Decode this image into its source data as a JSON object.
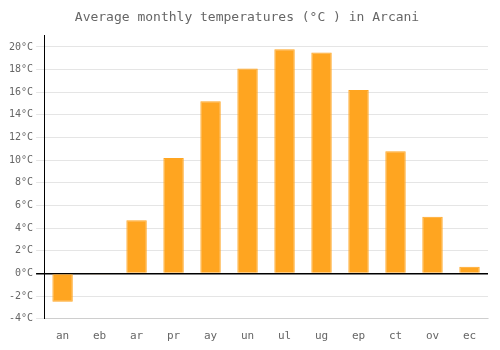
{
  "chart_data": {
    "type": "bar",
    "title": "Average monthly temperatures (°C ) in Arcani",
    "categories": [
      "an",
      "eb",
      "ar",
      "pr",
      "ay",
      "un",
      "ul",
      "ug",
      "ep",
      "ct",
      "ov",
      "ec"
    ],
    "values": [
      -2.5,
      -0.1,
      4.7,
      10.2,
      15.2,
      18.1,
      19.8,
      19.5,
      16.2,
      10.8,
      5.0,
      0.6
    ],
    "color": "#FFA520",
    "ylim": [
      -4,
      21
    ],
    "yticks": [
      {
        "value": -4,
        "label": "-4°C"
      },
      {
        "value": -2,
        "label": "-2°C"
      },
      {
        "value": 0,
        "label": "0°C"
      },
      {
        "value": 2,
        "label": "2°C"
      },
      {
        "value": 4,
        "label": "4°C"
      },
      {
        "value": 6,
        "label": "6°C"
      },
      {
        "value": 8,
        "label": "8°C"
      },
      {
        "value": 10,
        "label": "10°C"
      },
      {
        "value": 12,
        "label": "12°C"
      },
      {
        "value": 14,
        "label": "14°C"
      },
      {
        "value": 16,
        "label": "16°C"
      },
      {
        "value": 18,
        "label": "18°C"
      },
      {
        "value": 20,
        "label": "20°C"
      }
    ],
    "grid": true
  }
}
